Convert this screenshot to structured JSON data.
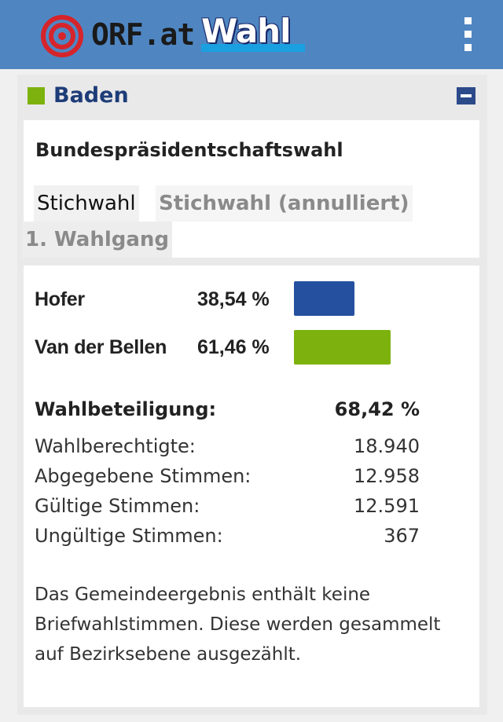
{
  "header": {
    "logo_text": "ORF.at",
    "wahl_logo": "Wahl",
    "menu_icon": "vertical-dots-icon",
    "bg_color": "#4f86c2"
  },
  "region": {
    "title": "Baden",
    "marker_color": "#7db20e",
    "collapse_icon": "minus-square-icon"
  },
  "election": {
    "title": "Bundespräsidentschaftswahl",
    "tabs": [
      {
        "label": "Stichwahl",
        "active": true
      },
      {
        "label": "Stichwahl (annulliert)",
        "active": false
      },
      {
        "label": "1. Wahlgang",
        "active": false
      }
    ]
  },
  "results": {
    "candidates": [
      {
        "name": "Hofer",
        "percent": "38,54 %",
        "share": 38.54,
        "color": "#2550a0"
      },
      {
        "name": "Van der Bellen",
        "percent": "61,46 %",
        "share": 61.46,
        "color": "#7db20e"
      }
    ],
    "turnout": {
      "label": "Wahlbeteiligung:",
      "value": "68,42 %"
    },
    "stats": [
      {
        "label": "Wahlberechtigte:",
        "value": "18.940"
      },
      {
        "label": "Abgegebene Stimmen:",
        "value": "12.958"
      },
      {
        "label": "Gültige Stimmen:",
        "value": "12.591"
      },
      {
        "label": "Ungültige Stimmen:",
        "value": "367"
      }
    ],
    "note": "Das Gemeindeergebnis enthält keine Briefwahlstimmen. Diese werden gesammelt auf Bezirksebene ausgezählt."
  }
}
